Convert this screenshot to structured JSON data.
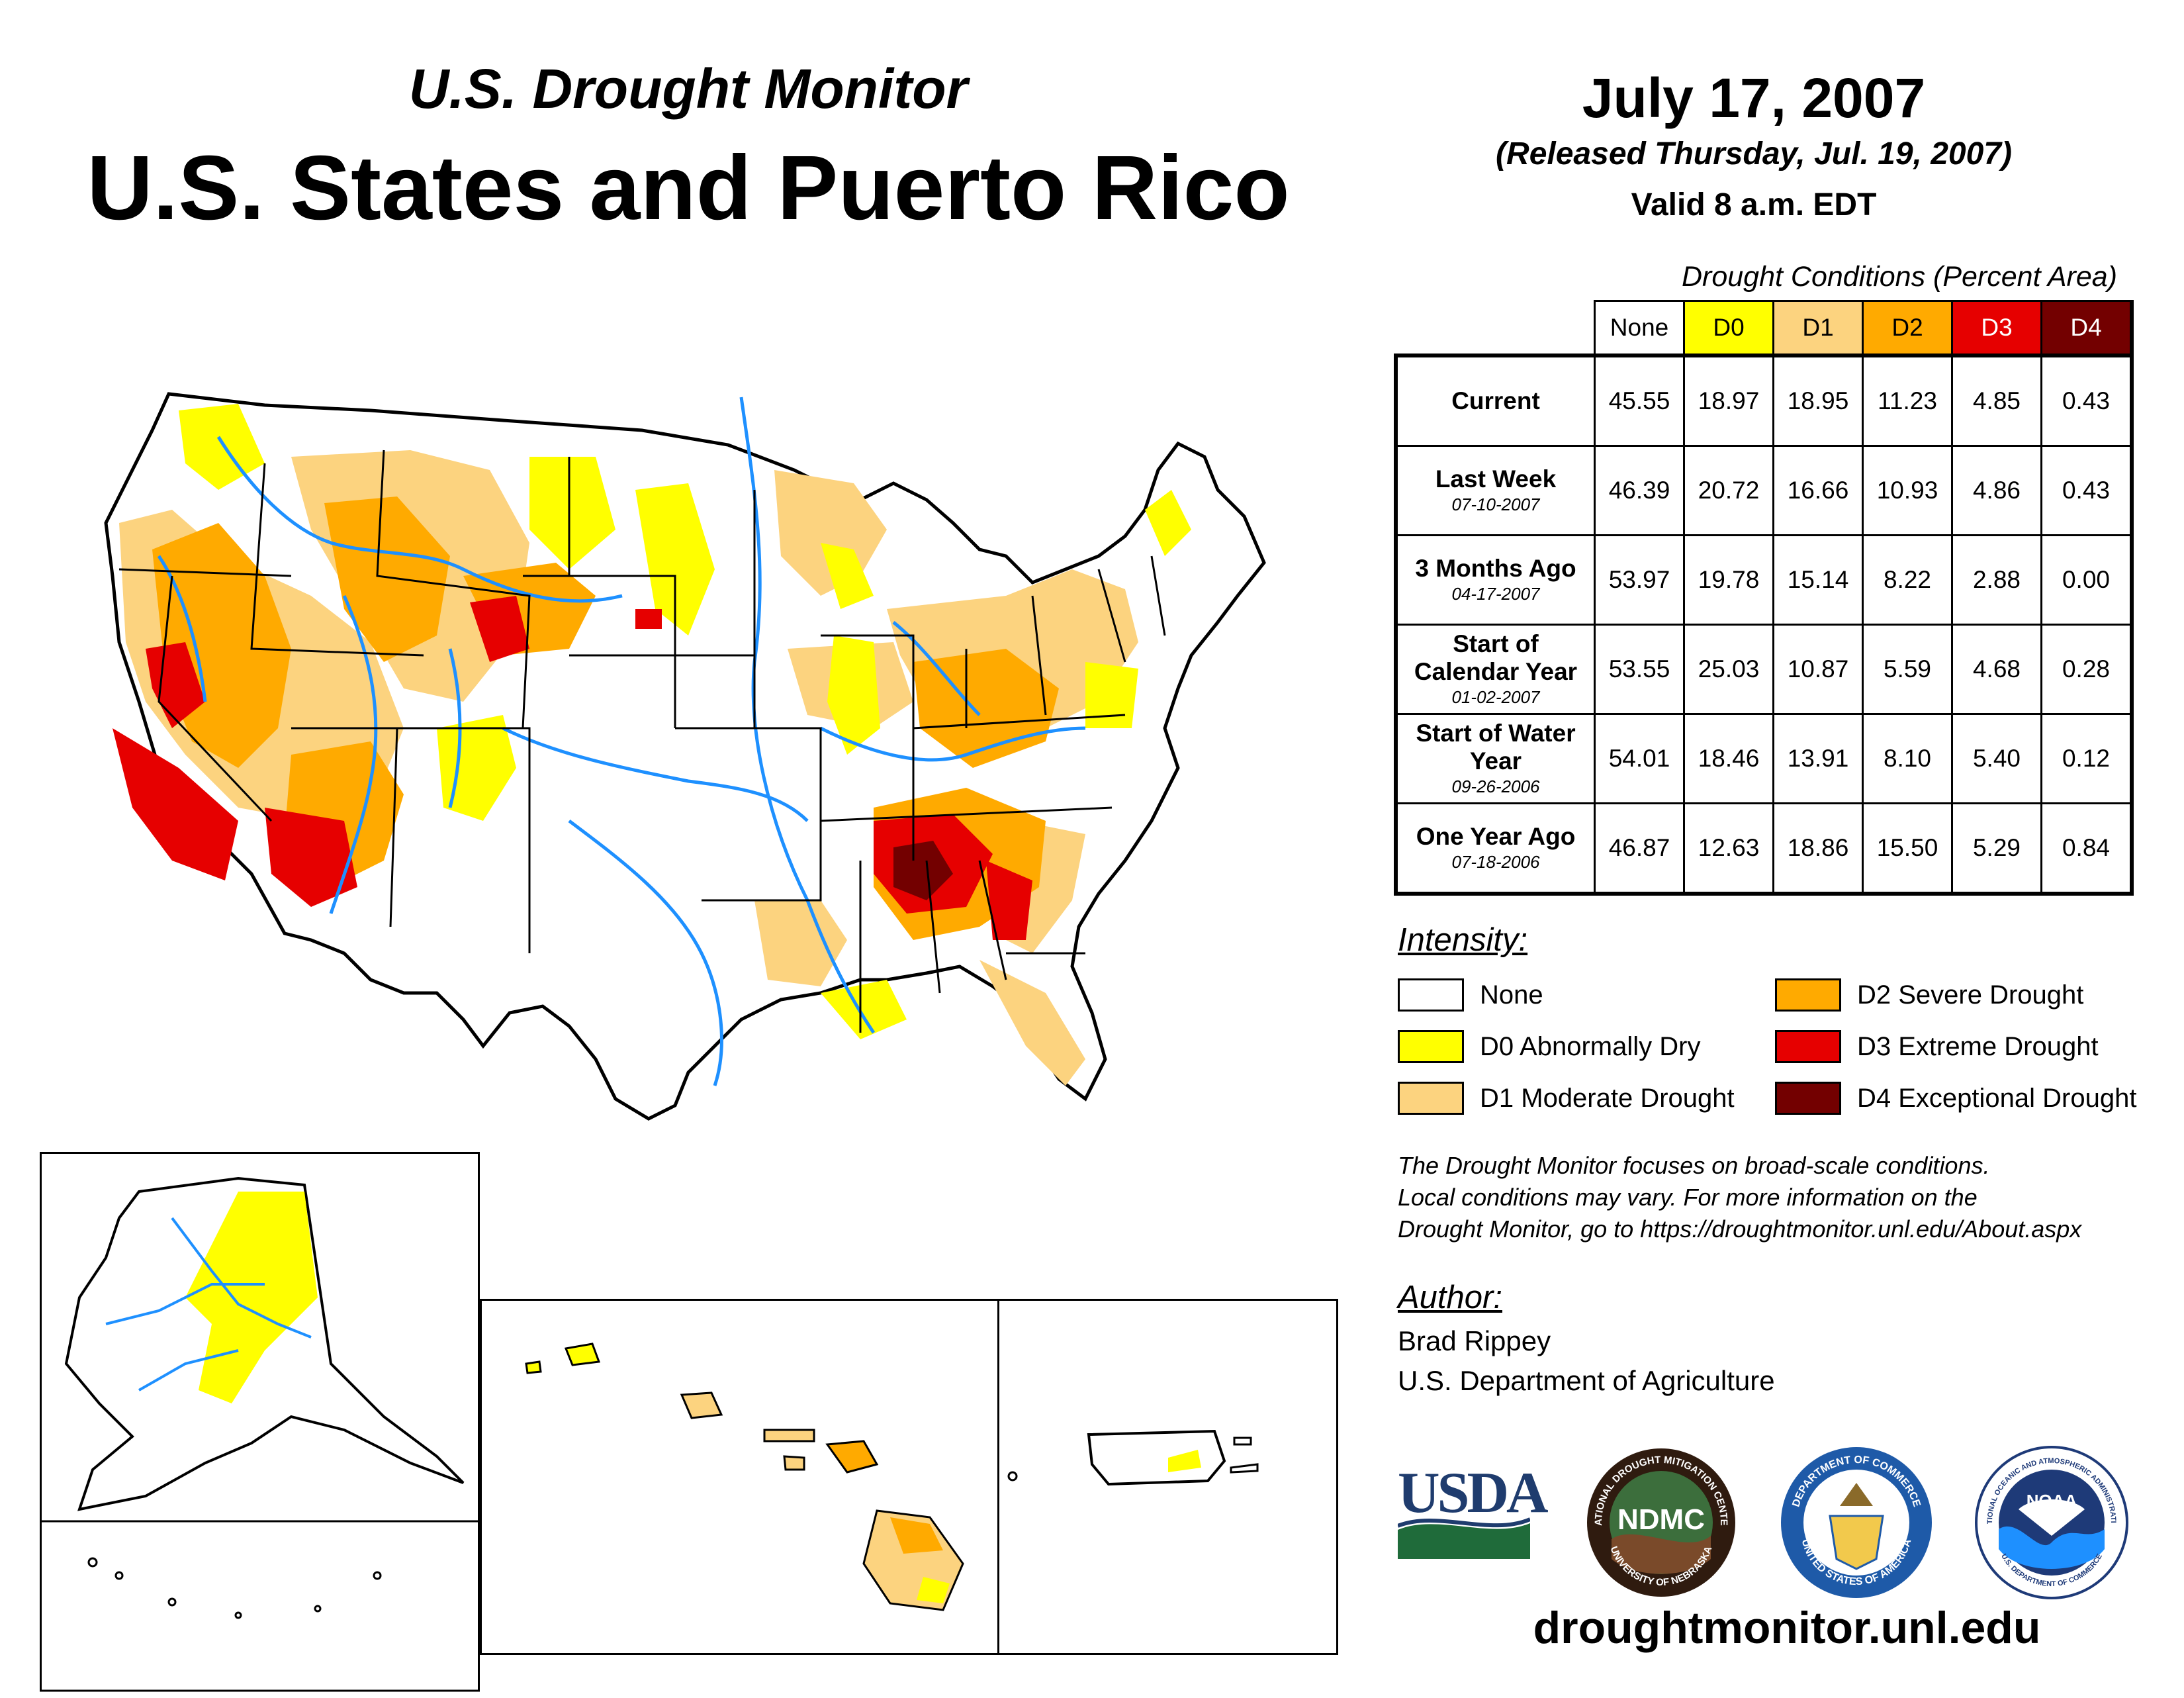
{
  "header": {
    "subtitle": "U.S. Drought Monitor",
    "title": "U.S. States and Puerto Rico",
    "date": "July 17, 2007",
    "released": "(Released Thursday, Jul. 19, 2007)",
    "valid": "Valid 8 a.m. EDT"
  },
  "table": {
    "caption": "Drought Conditions (Percent Area)",
    "columns": [
      "None",
      "D0",
      "D1",
      "D2",
      "D3",
      "D4"
    ],
    "column_colors": [
      "#ffffff",
      "#ffff00",
      "#fcd37f",
      "#ffaa00",
      "#e60000",
      "#730000"
    ],
    "rows": [
      {
        "label": "Current",
        "date": "",
        "values": [
          "45.55",
          "18.97",
          "18.95",
          "11.23",
          "4.85",
          "0.43"
        ]
      },
      {
        "label": "Last Week",
        "date": "07-10-2007",
        "values": [
          "46.39",
          "20.72",
          "16.66",
          "10.93",
          "4.86",
          "0.43"
        ]
      },
      {
        "label": "3 Months Ago",
        "date": "04-17-2007",
        "values": [
          "53.97",
          "19.78",
          "15.14",
          "8.22",
          "2.88",
          "0.00"
        ]
      },
      {
        "label": "Start of Calendar Year",
        "date": "01-02-2007",
        "values": [
          "53.55",
          "25.03",
          "10.87",
          "5.59",
          "4.68",
          "0.28"
        ]
      },
      {
        "label": "Start of Water Year",
        "date": "09-26-2006",
        "values": [
          "54.01",
          "18.46",
          "13.91",
          "8.10",
          "5.40",
          "0.12"
        ]
      },
      {
        "label": "One Year Ago",
        "date": "07-18-2006",
        "values": [
          "46.87",
          "12.63",
          "18.86",
          "15.50",
          "5.29",
          "0.84"
        ]
      }
    ]
  },
  "legend": {
    "heading": "Intensity:",
    "items": [
      {
        "label": "None",
        "color": "#ffffff"
      },
      {
        "label": "D0 Abnormally Dry",
        "color": "#ffff00"
      },
      {
        "label": "D1 Moderate Drought",
        "color": "#fcd37f"
      },
      {
        "label": "D2 Severe Drought",
        "color": "#ffaa00"
      },
      {
        "label": "D3 Extreme Drought",
        "color": "#e60000"
      },
      {
        "label": "D4 Exceptional Drought",
        "color": "#730000"
      }
    ]
  },
  "disclaimer": {
    "line1": "The Drought Monitor focuses on broad-scale conditions.",
    "line2": "Local conditions may vary. For more information on the",
    "line3": "Drought Monitor, go to https://droughtmonitor.unl.edu/About.aspx"
  },
  "author": {
    "heading": "Author:",
    "name": "Brad Rippey",
    "org": "U.S. Department of Agriculture"
  },
  "logos": {
    "usda": "USDA",
    "ndmc": "NDMC",
    "ndmc_ring_top": "NATIONAL DROUGHT MITIGATION CENTER",
    "ndmc_ring_bottom": "UNIVERSITY OF NEBRASKA",
    "doc_ring_top": "DEPARTMENT OF COMMERCE",
    "doc_ring_bottom": "UNITED STATES OF AMERICA",
    "noaa": "NOAA",
    "noaa_ring_top": "NATIONAL OCEANIC AND ATMOSPHERIC ADMINISTRATION",
    "noaa_ring_bottom": "U.S. DEPARTMENT OF COMMERCE"
  },
  "website": "droughtmonitor.unl.edu",
  "map_icons": {
    "conus": "conus-drought-map",
    "alaska": "alaska-inset-map",
    "hawaii": "hawaii-inset-map",
    "puerto_rico": "puerto-rico-inset-map"
  }
}
